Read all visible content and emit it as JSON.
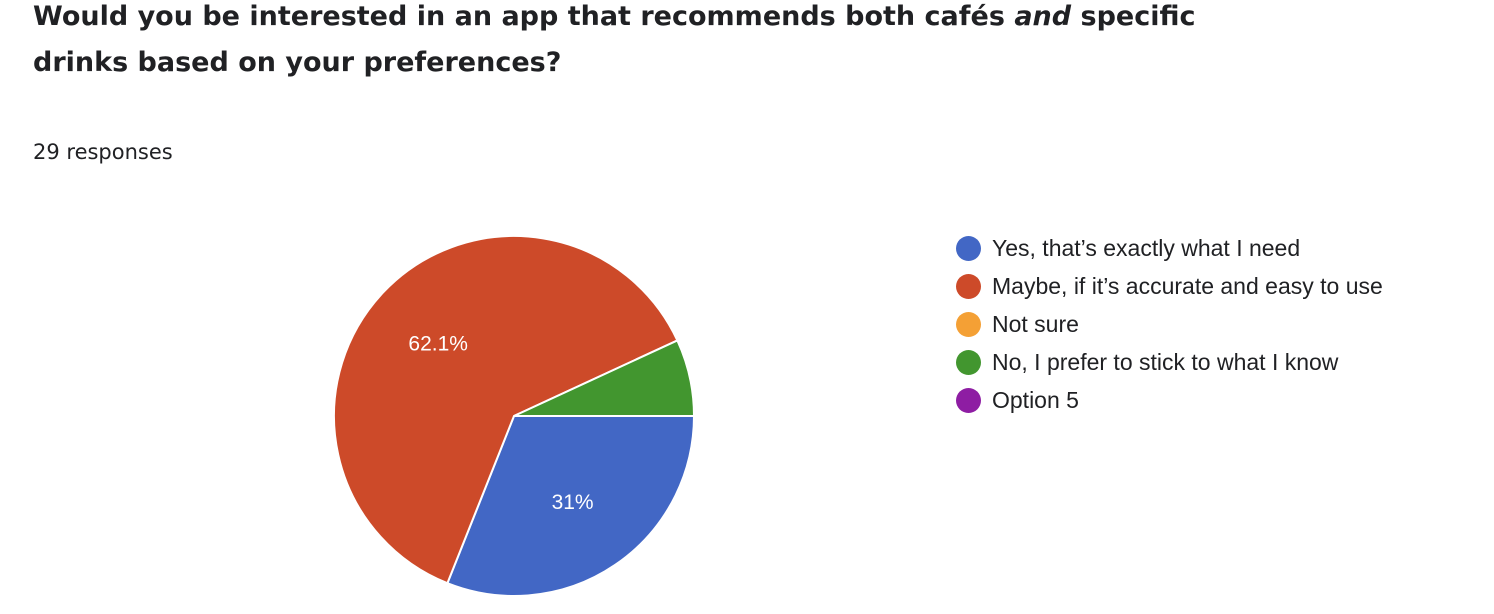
{
  "question": {
    "line1_before": "Would you be interested in an app that recommends both cafés ",
    "line1_emphasis": "and",
    "line1_after": " specific",
    "line2": "drinks based on your preferences?"
  },
  "responses_text": "29 responses",
  "chart_data": {
    "type": "pie",
    "total_responses": 29,
    "slices": [
      {
        "label": "Yes, that’s exactly what I need",
        "count": 9,
        "percent": 31,
        "percent_label": "31%",
        "color": "#4267c5"
      },
      {
        "label": "Maybe, if it’s accurate and easy to use",
        "count": 18,
        "percent": 62.1,
        "percent_label": "62.1%",
        "color": "#cd4a29"
      },
      {
        "label": "Not sure",
        "count": 0,
        "percent": 0,
        "percent_label": "",
        "color": "#f4a035"
      },
      {
        "label": "No, I prefer to stick to what I know",
        "count": 2,
        "percent": 6.9,
        "percent_label": "",
        "color": "#42962f"
      },
      {
        "label": "Option 5",
        "count": 0,
        "percent": 0,
        "percent_label": "",
        "color": "#8e1da3"
      }
    ],
    "legend_position": "right"
  }
}
